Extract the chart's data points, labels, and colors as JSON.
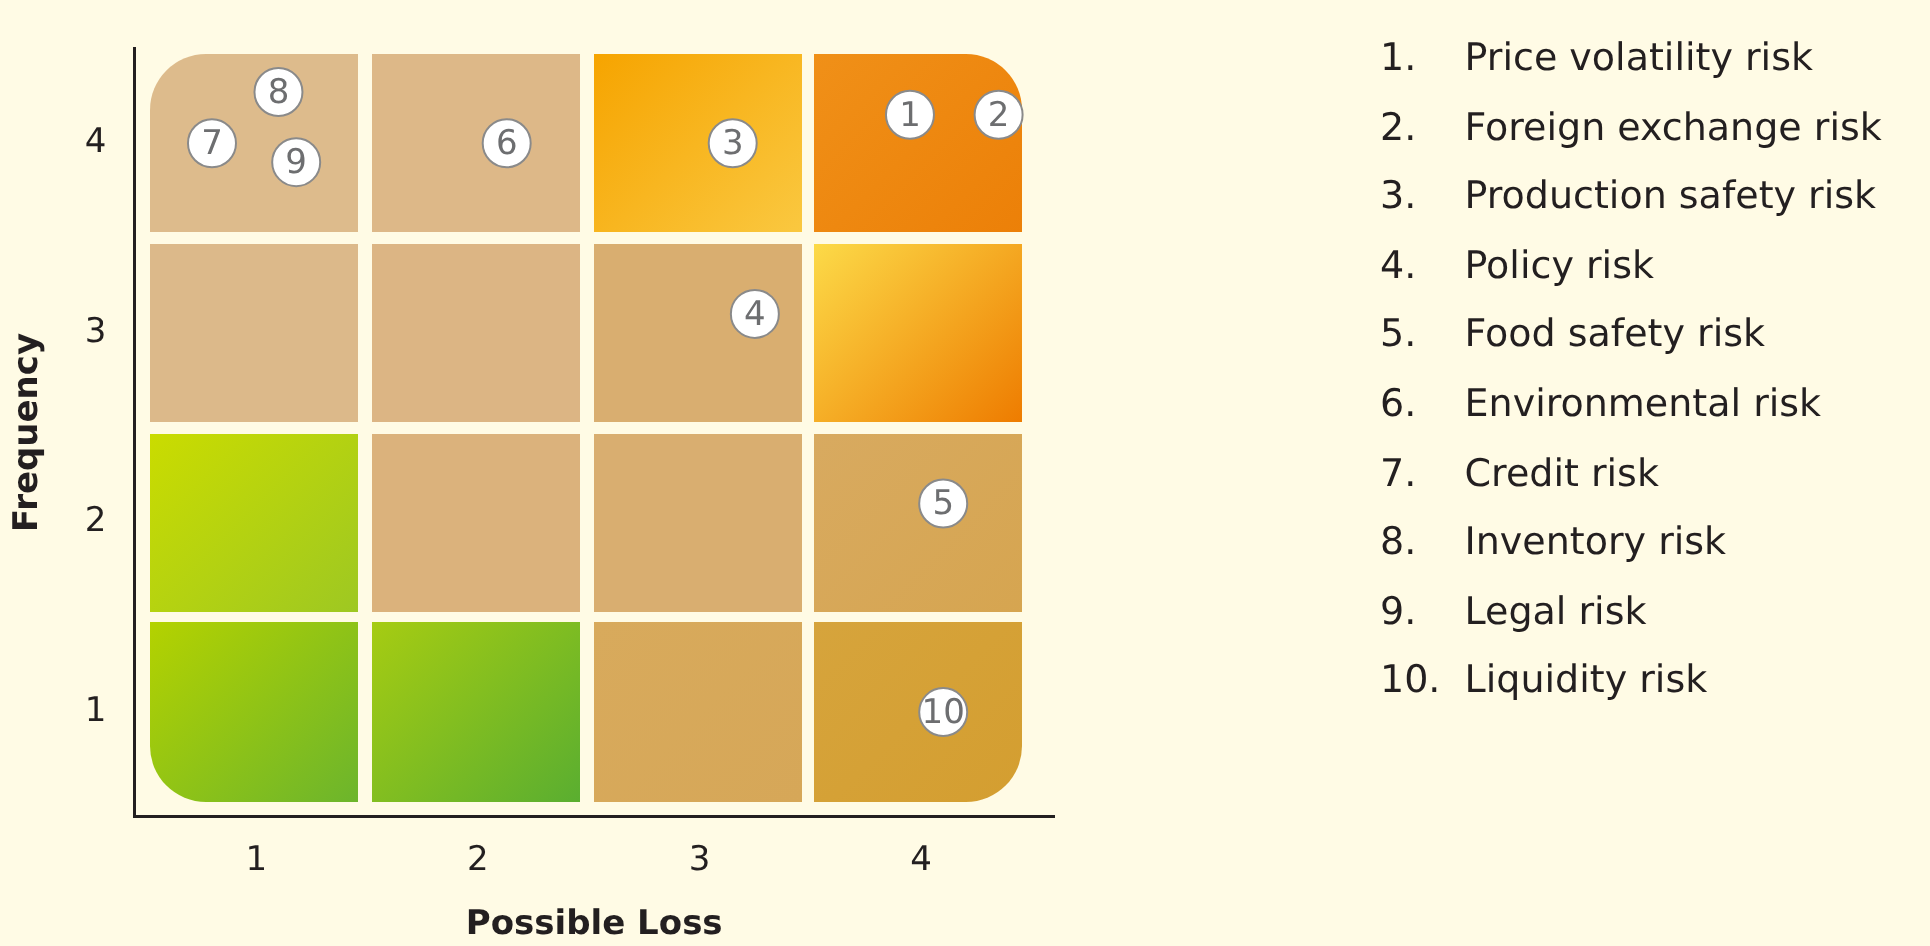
{
  "chart_data": {
    "type": "scatter",
    "xlabel": "Possible Loss",
    "ylabel": "Frequency",
    "xlim": [
      0.45,
      4.6
    ],
    "ylim": [
      0.45,
      4.5
    ],
    "xticks": [
      1,
      2,
      3,
      4
    ],
    "yticks": [
      1,
      2,
      3,
      4
    ],
    "grid": false,
    "legend": false,
    "marker": "circle",
    "x": [
      3.95,
      4.35,
      3.15,
      3.25,
      4.1,
      2.13,
      0.8,
      1.1,
      1.18,
      4.1
    ],
    "values": [
      4.15,
      4.15,
      4.0,
      3.1,
      2.1,
      4.0,
      4.0,
      4.27,
      3.9,
      1.0
    ],
    "color": "#ffffff",
    "annotations": [
      {
        "text": "1",
        "x": 3.95,
        "y": 4.15
      },
      {
        "text": "2",
        "x": 4.35,
        "y": 4.15
      },
      {
        "text": "3",
        "x": 3.15,
        "y": 4.0
      },
      {
        "text": "4",
        "x": 3.25,
        "y": 3.1
      },
      {
        "text": "5",
        "x": 4.1,
        "y": 2.1
      },
      {
        "text": "6",
        "x": 2.13,
        "y": 4.0
      },
      {
        "text": "7",
        "x": 0.8,
        "y": 4.0
      },
      {
        "text": "8",
        "x": 1.1,
        "y": 4.27
      },
      {
        "text": "9",
        "x": 1.18,
        "y": 3.9
      },
      {
        "text": "10",
        "x": 4.1,
        "y": 1.0
      },
      "1.\tPrice volatility risk",
      "2.\tForeign exchange risk",
      "3.\tProduction safety risk",
      "4.\tPolicy risk",
      "5.\tFood safety risk",
      "6.\tEnvironmental risk",
      "7.\tCredit risk",
      "8.\tInventory risk",
      "9.\tLegal risk",
      "10.\tLiquidity risk"
    ]
  }
}
